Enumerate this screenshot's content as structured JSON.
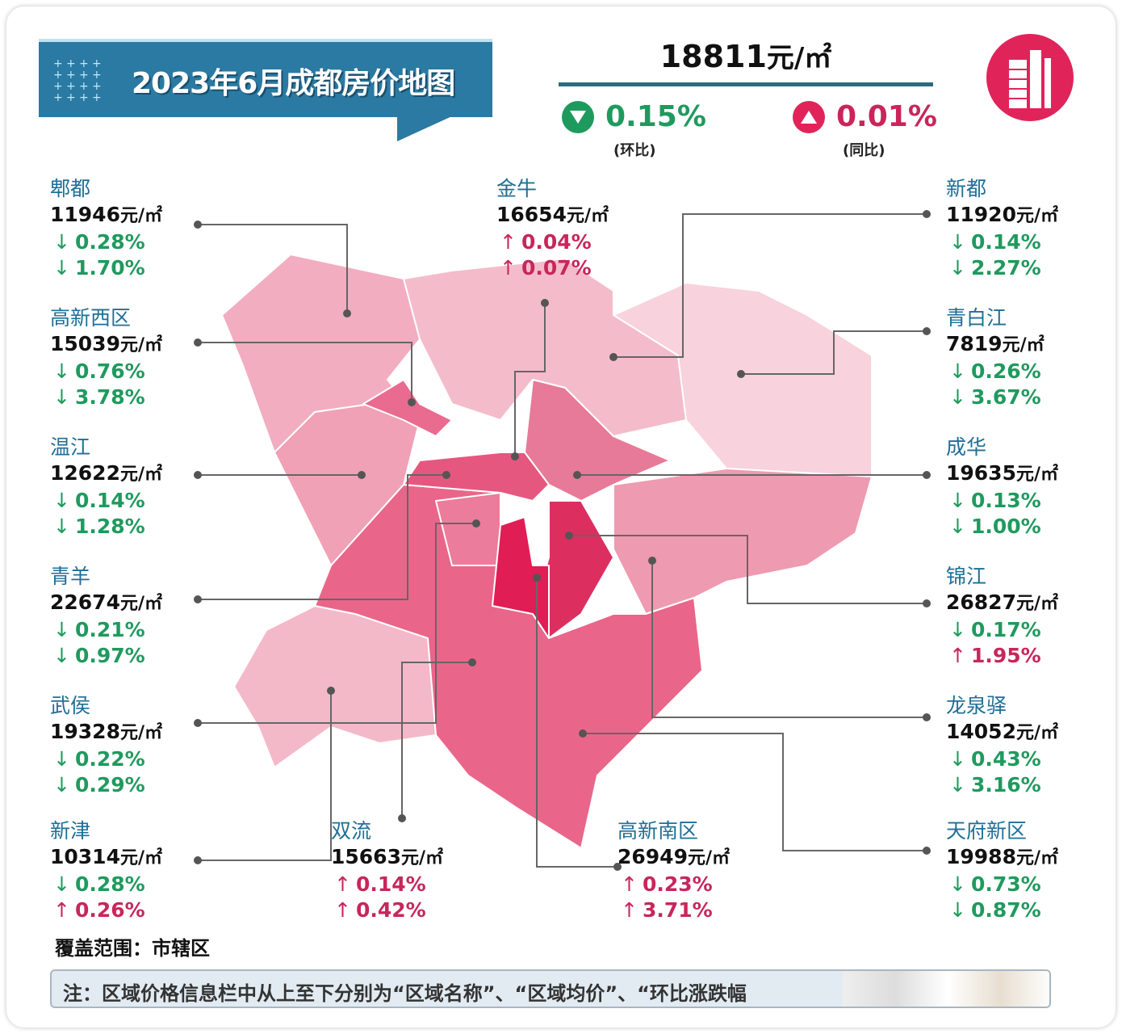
{
  "header": {
    "title": "2023年6月成都房价地图",
    "avg_price": "18811",
    "unit": "元/㎡",
    "mom": {
      "direction": "down",
      "value": "0.15%",
      "label": "(环比)"
    },
    "yoy": {
      "direction": "up",
      "value": "0.01%",
      "label": "(同比)"
    }
  },
  "colors": {
    "banner": "#2a7aa3",
    "down": "#1f9a5e",
    "up": "#c8265b",
    "district_name": "#1f6f96",
    "logo": "#e0245a"
  },
  "districts": [
    {
      "name": "郫都",
      "price": "11946",
      "mom": {
        "dir": "down",
        "value": "0.28%"
      },
      "yoy": {
        "dir": "down",
        "value": "1.70%"
      }
    },
    {
      "name": "高新西区",
      "price": "15039",
      "mom": {
        "dir": "down",
        "value": "0.76%"
      },
      "yoy": {
        "dir": "down",
        "value": "3.78%"
      }
    },
    {
      "name": "温江",
      "price": "12622",
      "mom": {
        "dir": "down",
        "value": "0.14%"
      },
      "yoy": {
        "dir": "down",
        "value": "1.28%"
      }
    },
    {
      "name": "青羊",
      "price": "22674",
      "mom": {
        "dir": "down",
        "value": "0.21%"
      },
      "yoy": {
        "dir": "down",
        "value": "0.97%"
      }
    },
    {
      "name": "武侯",
      "price": "19328",
      "mom": {
        "dir": "down",
        "value": "0.22%"
      },
      "yoy": {
        "dir": "down",
        "value": "0.29%"
      }
    },
    {
      "name": "新津",
      "price": "10314",
      "mom": {
        "dir": "down",
        "value": "0.28%"
      },
      "yoy": {
        "dir": "up",
        "value": "0.26%"
      }
    },
    {
      "name": "双流",
      "price": "15663",
      "mom": {
        "dir": "up",
        "value": "0.14%"
      },
      "yoy": {
        "dir": "up",
        "value": "0.42%"
      }
    },
    {
      "name": "高新南区",
      "price": "26949",
      "mom": {
        "dir": "up",
        "value": "0.23%"
      },
      "yoy": {
        "dir": "up",
        "value": "3.71%"
      }
    },
    {
      "name": "金牛",
      "price": "16654",
      "mom": {
        "dir": "up",
        "value": "0.04%"
      },
      "yoy": {
        "dir": "up",
        "value": "0.07%"
      }
    },
    {
      "name": "新都",
      "price": "11920",
      "mom": {
        "dir": "down",
        "value": "0.14%"
      },
      "yoy": {
        "dir": "down",
        "value": "2.27%"
      }
    },
    {
      "name": "青白江",
      "price": "7819",
      "mom": {
        "dir": "down",
        "value": "0.26%"
      },
      "yoy": {
        "dir": "down",
        "value": "3.67%"
      }
    },
    {
      "name": "成华",
      "price": "19635",
      "mom": {
        "dir": "down",
        "value": "0.13%"
      },
      "yoy": {
        "dir": "down",
        "value": "1.00%"
      }
    },
    {
      "name": "锦江",
      "price": "26827",
      "mom": {
        "dir": "down",
        "value": "0.17%"
      },
      "yoy": {
        "dir": "up",
        "value": "1.95%"
      }
    },
    {
      "name": "龙泉驿",
      "price": "14052",
      "mom": {
        "dir": "down",
        "value": "0.43%"
      },
      "yoy": {
        "dir": "down",
        "value": "3.16%"
      }
    },
    {
      "name": "天府新区",
      "price": "19988",
      "mom": {
        "dir": "down",
        "value": "0.73%"
      },
      "yoy": {
        "dir": "down",
        "value": "0.87%"
      }
    }
  ],
  "footer": {
    "coverage": "覆盖范围：市辖区",
    "note": "注：区域价格信息栏中从上至下分别为“区域名称”、“区域均价”、“环比涨跌幅"
  }
}
